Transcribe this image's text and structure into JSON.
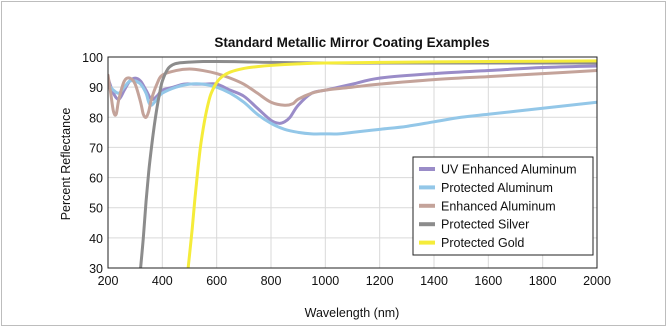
{
  "chart_data": {
    "type": "line",
    "title": "Standard Metallic Mirror Coating Examples",
    "xlabel": "Wavelength (nm)",
    "ylabel": "Percent Reflectance",
    "xlim": [
      200,
      2000
    ],
    "ylim": [
      30,
      100
    ],
    "xticks": [
      200,
      400,
      600,
      800,
      1000,
      1200,
      1400,
      1600,
      1800,
      2000
    ],
    "yticks": [
      30,
      40,
      50,
      60,
      70,
      80,
      90,
      100
    ],
    "grid": true,
    "legend_position": "bottom-right",
    "series": [
      {
        "name": "UV Enhanced Aluminum",
        "color": "#9a8cc8",
        "x": [
          200,
          220,
          240,
          260,
          280,
          300,
          320,
          340,
          360,
          380,
          400,
          440,
          480,
          520,
          560,
          600,
          650,
          700,
          750,
          800,
          830,
          850,
          870,
          900,
          950,
          1000,
          1100,
          1200,
          1400,
          1600,
          1800,
          2000
        ],
        "y": [
          93,
          88,
          86,
          89,
          92,
          93,
          92,
          89,
          86,
          87,
          89,
          90,
          91,
          91,
          91,
          91,
          89,
          87,
          83,
          79,
          78,
          78.5,
          80,
          84,
          88,
          89,
          91,
          93,
          94.5,
          95.5,
          96.5,
          97
        ]
      },
      {
        "name": "Protected Aluminum",
        "color": "#93c7e8",
        "x": [
          200,
          220,
          240,
          260,
          280,
          300,
          320,
          340,
          350,
          360,
          380,
          400,
          450,
          500,
          550,
          600,
          650,
          700,
          750,
          800,
          850,
          900,
          950,
          1000,
          1050,
          1100,
          1200,
          1300,
          1400,
          1500,
          1600,
          1700,
          1800,
          1900,
          2000
        ],
        "y": [
          91,
          89,
          88,
          90,
          92,
          92,
          91,
          88,
          85,
          84,
          86,
          88,
          90,
          91,
          91,
          90,
          88,
          85,
          81,
          78,
          76,
          75,
          74.5,
          74.5,
          74.5,
          75,
          76,
          77,
          78.5,
          80,
          81,
          82,
          83,
          84,
          85
        ]
      },
      {
        "name": "Enhanced Aluminum",
        "color": "#c4a39a",
        "x": [
          200,
          210,
          220,
          230,
          240,
          260,
          280,
          300,
          320,
          330,
          340,
          350,
          360,
          380,
          400,
          450,
          500,
          550,
          600,
          650,
          700,
          750,
          800,
          850,
          880,
          900,
          950,
          1000,
          1100,
          1200,
          1400,
          1600,
          1800,
          2000
        ],
        "y": [
          94,
          88,
          82,
          81,
          86,
          92,
          93,
          91,
          85,
          81,
          80,
          82,
          86,
          91,
          94,
          95.5,
          96,
          95.5,
          94.5,
          93,
          91,
          88,
          85,
          84,
          84.5,
          86,
          88,
          89,
          90,
          91,
          92.5,
          93.5,
          94.5,
          95.5
        ]
      },
      {
        "name": "Protected Silver",
        "color": "#8c8c8c",
        "x": [
          320,
          330,
          340,
          350,
          360,
          370,
          380,
          390,
          400,
          420,
          440,
          460,
          500,
          550,
          600,
          700,
          800,
          1000,
          1200,
          1400,
          1600,
          1800,
          2000
        ],
        "y": [
          30,
          40,
          52,
          62,
          70,
          77,
          83,
          88,
          92,
          96,
          97.5,
          98,
          98.3,
          98.5,
          98.5,
          98.4,
          98.2,
          98,
          98,
          98,
          98,
          98,
          98
        ]
      },
      {
        "name": "Protected Gold",
        "color": "#f5ec3a",
        "x": [
          495,
          510,
          520,
          530,
          540,
          550,
          560,
          570,
          580,
          600,
          620,
          650,
          700,
          750,
          800,
          900,
          1000,
          1200,
          1400,
          1600,
          1800,
          2000
        ],
        "y": [
          30,
          43,
          53,
          62,
          70,
          76,
          81,
          85,
          88,
          91.5,
          93.5,
          95,
          96.2,
          96.8,
          97.2,
          97.7,
          98,
          98.2,
          98.4,
          98.5,
          98.6,
          98.7
        ]
      }
    ]
  }
}
